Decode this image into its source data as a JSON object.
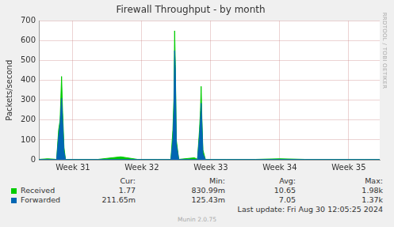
{
  "chart_data": {
    "type": "line",
    "title": "Firewall Throughput - by month",
    "y_label": "Packets/second",
    "annotations": [
      "RRDTOOL / TOBI OETIKER"
    ],
    "x": [
      0,
      0.9,
      1.8,
      2.0,
      2.15,
      2.3,
      2.4,
      2.55,
      2.7,
      4,
      6,
      8.3,
      10,
      12,
      13.4,
      13.6,
      13.7,
      13.78,
      13.85,
      13.95,
      14.2,
      15.8,
      16.1,
      16.3,
      16.4,
      16.47,
      16.55,
      16.65,
      16.9,
      19,
      22,
      24.45,
      27,
      30,
      33,
      34.6
    ],
    "xlim": [
      0,
      34.6
    ],
    "xticks": [
      {
        "value": 3.45,
        "label": "Week 31"
      },
      {
        "value": 10.45,
        "label": "Week 32"
      },
      {
        "value": 17.45,
        "label": "Week 33"
      },
      {
        "value": 24.45,
        "label": "Week 34"
      },
      {
        "value": 31.45,
        "label": "Week 35"
      }
    ],
    "ylim": [
      0,
      700
    ],
    "yticks": [
      0,
      100,
      200,
      300,
      400,
      500,
      600,
      700
    ],
    "grid": true,
    "series": [
      {
        "name": "Received",
        "color": "#00cc00",
        "values": [
          2,
          5,
          2,
          150,
          200,
          420,
          250,
          60,
          2,
          2,
          2,
          15,
          2,
          2,
          2,
          150,
          300,
          650,
          480,
          100,
          2,
          10,
          2,
          150,
          250,
          370,
          200,
          50,
          2,
          2,
          2,
          5,
          2,
          2,
          2,
          2
        ],
        "stats": [
          "1.77",
          "830.99m",
          "10.65",
          "1.98k"
        ]
      },
      {
        "name": "Forwarded",
        "color": "#0066b3",
        "values": [
          1,
          1,
          1,
          120,
          180,
          310,
          200,
          40,
          1,
          1,
          1,
          1,
          1,
          1,
          1,
          100,
          250,
          550,
          450,
          80,
          1,
          1,
          1,
          120,
          200,
          285,
          180,
          30,
          1,
          1,
          1,
          1,
          1,
          1,
          1,
          1
        ],
        "stats": [
          "211.65m",
          "125.43m",
          "7.05",
          "1.37k"
        ]
      }
    ],
    "stats_columns": [
      "Cur:",
      "Min:",
      "Avg:",
      "Max:"
    ],
    "last_update": "Last update:  Fri Aug 30 12:05:25 2024",
    "footer": "Munin 2.0.75"
  }
}
